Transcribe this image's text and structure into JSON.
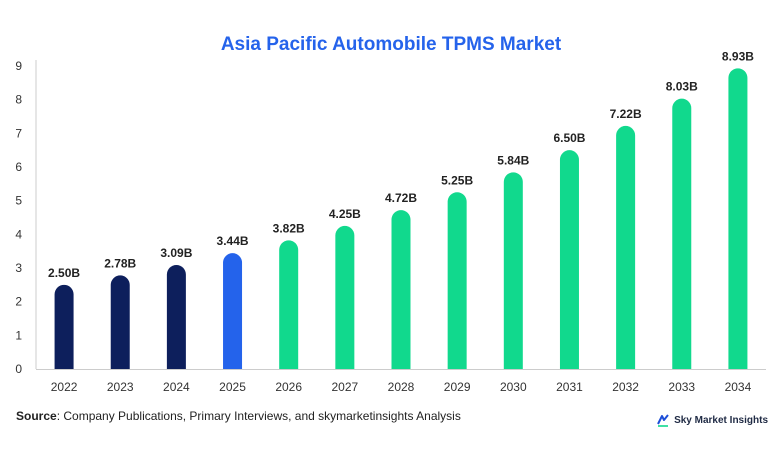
{
  "chart_data": {
    "type": "bar",
    "title": "Asia Pacific Automobile TPMS Market",
    "categories": [
      "2022",
      "2023",
      "2024",
      "2025",
      "2026",
      "2027",
      "2028",
      "2029",
      "2030",
      "2031",
      "2032",
      "2033",
      "2034"
    ],
    "values": [
      2.5,
      2.78,
      3.09,
      3.44,
      3.82,
      4.25,
      4.72,
      5.25,
      5.84,
      6.5,
      7.22,
      8.03,
      8.93
    ],
    "data_labels": [
      "2.50B",
      "2.78B",
      "3.09B",
      "3.44B",
      "3.82B",
      "4.25B",
      "4.72B",
      "5.25B",
      "5.84B",
      "6.50B",
      "7.22B",
      "8.03B",
      "8.93B"
    ],
    "bar_colors": [
      "#0d1f5c",
      "#0d1f5c",
      "#0d1f5c",
      "#2463eb",
      "#11d98d",
      "#11d98d",
      "#11d98d",
      "#11d98d",
      "#11d98d",
      "#11d98d",
      "#11d98d",
      "#11d98d",
      "#11d98d"
    ],
    "ylim": [
      0,
      9
    ],
    "yticks": [
      "0",
      "1",
      "2",
      "3",
      "4",
      "5",
      "6",
      "7",
      "8",
      "9"
    ],
    "xlabel": "",
    "ylabel": "",
    "grid": false
  },
  "source": {
    "label": "Source",
    "text": ": Company Publications, Primary Interviews, and skymarketinsights Analysis"
  },
  "brand": {
    "name": "Sky Market Insights",
    "logo_icon": "sky-market-insights-logo-icon",
    "logo_color": "#1d4ed8"
  }
}
